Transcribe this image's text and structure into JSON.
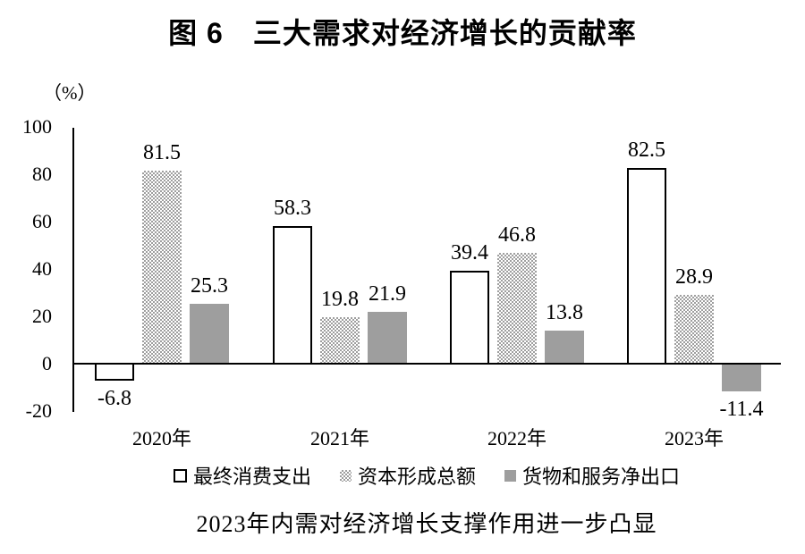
{
  "title": "图 6　三大需求对经济增长的贡献率",
  "caption": "2023年内需对经济增长支撑作用进一步凸显",
  "chart_data": {
    "type": "bar",
    "title": "图 6　三大需求对经济增长的贡献率",
    "unit_label": "（%）",
    "categories": [
      "2020年",
      "2021年",
      "2022年",
      "2023年"
    ],
    "series": [
      {
        "name": "最终消费支出",
        "pattern": "outline",
        "values": [
          -6.8,
          58.3,
          39.4,
          82.5
        ]
      },
      {
        "name": "资本形成总额",
        "pattern": "checker",
        "values": [
          81.5,
          19.8,
          46.8,
          28.9
        ]
      },
      {
        "name": "货物和服务净出口",
        "pattern": "solid",
        "values": [
          25.3,
          21.9,
          13.8,
          -11.4
        ]
      }
    ],
    "value_labels": [
      "-6.8",
      "58.3",
      "39.4",
      "82.5",
      "81.5",
      "19.8",
      "46.8",
      "28.9",
      "25.3",
      "21.9",
      "13.8",
      "-11.4"
    ],
    "y_ticks": [
      100,
      80,
      60,
      40,
      20,
      0,
      -20
    ],
    "ylim": [
      -20,
      100
    ],
    "grid": false,
    "legend_position": "bottom",
    "subtitle": "2023年内需对经济增长支撑作用进一步凸显",
    "colors": {
      "solid_gray": "#9e9e9e",
      "pattern_dot_gray": "#9e9e9e",
      "axis_black": "#000000",
      "text_black": "#000000",
      "background": "#ffffff"
    }
  }
}
